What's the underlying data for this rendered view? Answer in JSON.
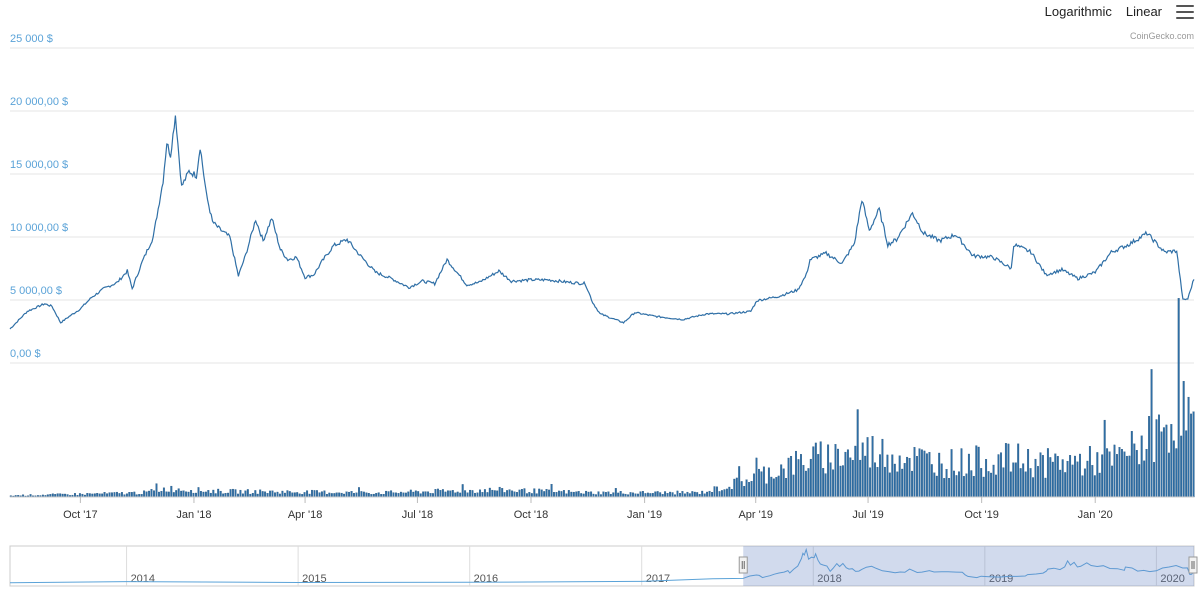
{
  "toolbar": {
    "log_label": "Logarithmic",
    "linear_label": "Linear",
    "menu_icon": "menu-icon"
  },
  "credit": "CoinGecko.com",
  "colors": {
    "line": "#2f6fa6",
    "axis_label": "#5ba3d8",
    "grid": "#e6e6e6",
    "bar": "#2f6fa6",
    "navigator_mask": "rgba(102,133,194,0.3)"
  },
  "chart_data": {
    "type": "line",
    "title": "",
    "xlabel": "",
    "ylabel": "",
    "y_tick_labels": [
      "0,00 $",
      "5 000,00 $",
      "10 000,00 $",
      "15 000,00 $",
      "20 000,00 $",
      "25 000 $"
    ],
    "y_ticks": [
      0,
      5000,
      10000,
      15000,
      20000,
      25000
    ],
    "ylim": [
      0,
      25000
    ],
    "x_tick_labels": [
      "Oct '17",
      "Jan '18",
      "Apr '18",
      "Jul '18",
      "Oct '18",
      "Jan '19",
      "Apr '19",
      "Jul '19",
      "Oct '19",
      "Jan '20"
    ],
    "x_tick_dates": [
      "2017-10-01",
      "2018-01-01",
      "2018-04-01",
      "2018-07-01",
      "2018-10-01",
      "2019-01-01",
      "2019-04-01",
      "2019-07-01",
      "2019-10-01",
      "2020-01-01"
    ],
    "xlim": [
      "2017-08-05",
      "2020-03-21"
    ],
    "grid": true,
    "series": [
      {
        "values": [
          [
            "2017-08-05",
            2700
          ],
          [
            "2017-08-12",
            3400
          ],
          [
            "2017-08-19",
            4100
          ],
          [
            "2017-08-26",
            4400
          ],
          [
            "2017-09-02",
            4700
          ],
          [
            "2017-09-08",
            4500
          ],
          [
            "2017-09-15",
            3200
          ],
          [
            "2017-09-22",
            3700
          ],
          [
            "2017-10-01",
            4300
          ],
          [
            "2017-10-10",
            5200
          ],
          [
            "2017-10-20",
            5900
          ],
          [
            "2017-10-31",
            6400
          ],
          [
            "2017-11-08",
            7300
          ],
          [
            "2017-11-12",
            5900
          ],
          [
            "2017-11-20",
            8000
          ],
          [
            "2017-11-29",
            10000
          ],
          [
            "2017-12-07",
            14500
          ],
          [
            "2017-12-10",
            17500
          ],
          [
            "2017-12-13",
            16500
          ],
          [
            "2017-12-17",
            19700
          ],
          [
            "2017-12-22",
            14000
          ],
          [
            "2017-12-28",
            15200
          ],
          [
            "2018-01-03",
            14900
          ],
          [
            "2018-01-06",
            17200
          ],
          [
            "2018-01-11",
            13400
          ],
          [
            "2018-01-16",
            11200
          ],
          [
            "2018-01-22",
            10600
          ],
          [
            "2018-01-30",
            10000
          ],
          [
            "2018-02-06",
            6900
          ],
          [
            "2018-02-12",
            8600
          ],
          [
            "2018-02-20",
            11400
          ],
          [
            "2018-02-26",
            9700
          ],
          [
            "2018-03-05",
            11500
          ],
          [
            "2018-03-12",
            9000
          ],
          [
            "2018-03-18",
            8200
          ],
          [
            "2018-03-25",
            8400
          ],
          [
            "2018-04-01",
            6800
          ],
          [
            "2018-04-08",
            7000
          ],
          [
            "2018-04-15",
            8100
          ],
          [
            "2018-04-24",
            9300
          ],
          [
            "2018-05-05",
            9800
          ],
          [
            "2018-05-15",
            8600
          ],
          [
            "2018-05-28",
            7200
          ],
          [
            "2018-06-10",
            6700
          ],
          [
            "2018-06-24",
            6000
          ],
          [
            "2018-07-05",
            6500
          ],
          [
            "2018-07-15",
            6300
          ],
          [
            "2018-07-25",
            8200
          ],
          [
            "2018-08-10",
            6200
          ],
          [
            "2018-08-20",
            6400
          ],
          [
            "2018-09-05",
            7300
          ],
          [
            "2018-09-15",
            6500
          ],
          [
            "2018-10-01",
            6600
          ],
          [
            "2018-10-15",
            6600
          ],
          [
            "2018-11-01",
            6400
          ],
          [
            "2018-11-14",
            6300
          ],
          [
            "2018-11-20",
            4800
          ],
          [
            "2018-11-26",
            3900
          ],
          [
            "2018-12-15",
            3200
          ],
          [
            "2018-12-24",
            4000
          ],
          [
            "2019-01-10",
            3700
          ],
          [
            "2019-02-01",
            3450
          ],
          [
            "2019-02-20",
            3900
          ],
          [
            "2019-03-10",
            3900
          ],
          [
            "2019-03-28",
            4100
          ],
          [
            "2019-04-02",
            4950
          ],
          [
            "2019-04-20",
            5300
          ],
          [
            "2019-05-05",
            5800
          ],
          [
            "2019-05-12",
            7000
          ],
          [
            "2019-05-15",
            8200
          ],
          [
            "2019-05-28",
            8700
          ],
          [
            "2019-06-10",
            7900
          ],
          [
            "2019-06-20",
            9500
          ],
          [
            "2019-06-26",
            13000
          ],
          [
            "2019-07-02",
            10500
          ],
          [
            "2019-07-10",
            12200
          ],
          [
            "2019-07-17",
            9400
          ],
          [
            "2019-07-24",
            9800
          ],
          [
            "2019-08-06",
            11900
          ],
          [
            "2019-08-15",
            10300
          ],
          [
            "2019-08-28",
            9700
          ],
          [
            "2019-09-10",
            10200
          ],
          [
            "2019-09-24",
            8500
          ],
          [
            "2019-10-10",
            8400
          ],
          [
            "2019-10-25",
            7500
          ],
          [
            "2019-10-27",
            9400
          ],
          [
            "2019-11-10",
            8800
          ],
          [
            "2019-11-22",
            7000
          ],
          [
            "2019-12-05",
            7400
          ],
          [
            "2019-12-18",
            6700
          ],
          [
            "2020-01-01",
            7200
          ],
          [
            "2020-01-14",
            8800
          ],
          [
            "2020-01-28",
            9400
          ],
          [
            "2020-02-12",
            10300
          ],
          [
            "2020-02-26",
            8800
          ],
          [
            "2020-03-07",
            8900
          ],
          [
            "2020-03-12",
            5000
          ],
          [
            "2020-03-16",
            5100
          ],
          [
            "2020-03-21",
            6700
          ]
        ]
      }
    ],
    "volume": {
      "levels": [
        [
          "2017-08-05",
          0.01
        ],
        [
          "2017-11-20",
          0.03
        ],
        [
          "2017-12-10",
          0.06
        ],
        [
          "2018-01-20",
          0.04
        ],
        [
          "2018-06-01",
          0.03
        ],
        [
          "2018-09-01",
          0.05
        ],
        [
          "2018-11-20",
          0.03
        ],
        [
          "2019-02-15",
          0.03
        ],
        [
          "2019-03-10",
          0.08
        ],
        [
          "2019-04-05",
          0.16
        ],
        [
          "2019-05-15",
          0.27
        ],
        [
          "2019-07-01",
          0.33
        ],
        [
          "2019-09-01",
          0.24
        ],
        [
          "2019-10-25",
          0.27
        ],
        [
          "2019-11-20",
          0.24
        ],
        [
          "2020-01-15",
          0.26
        ],
        [
          "2020-02-20",
          0.44
        ],
        [
          "2020-03-12",
          0.65
        ],
        [
          "2020-03-21",
          0.45
        ]
      ]
    },
    "navigator": {
      "years": [
        "2014",
        "2015",
        "2016",
        "2017",
        "2018",
        "2019",
        "2020"
      ],
      "selected_range": [
        "2017-08-05",
        "2020-03-21"
      ]
    }
  }
}
